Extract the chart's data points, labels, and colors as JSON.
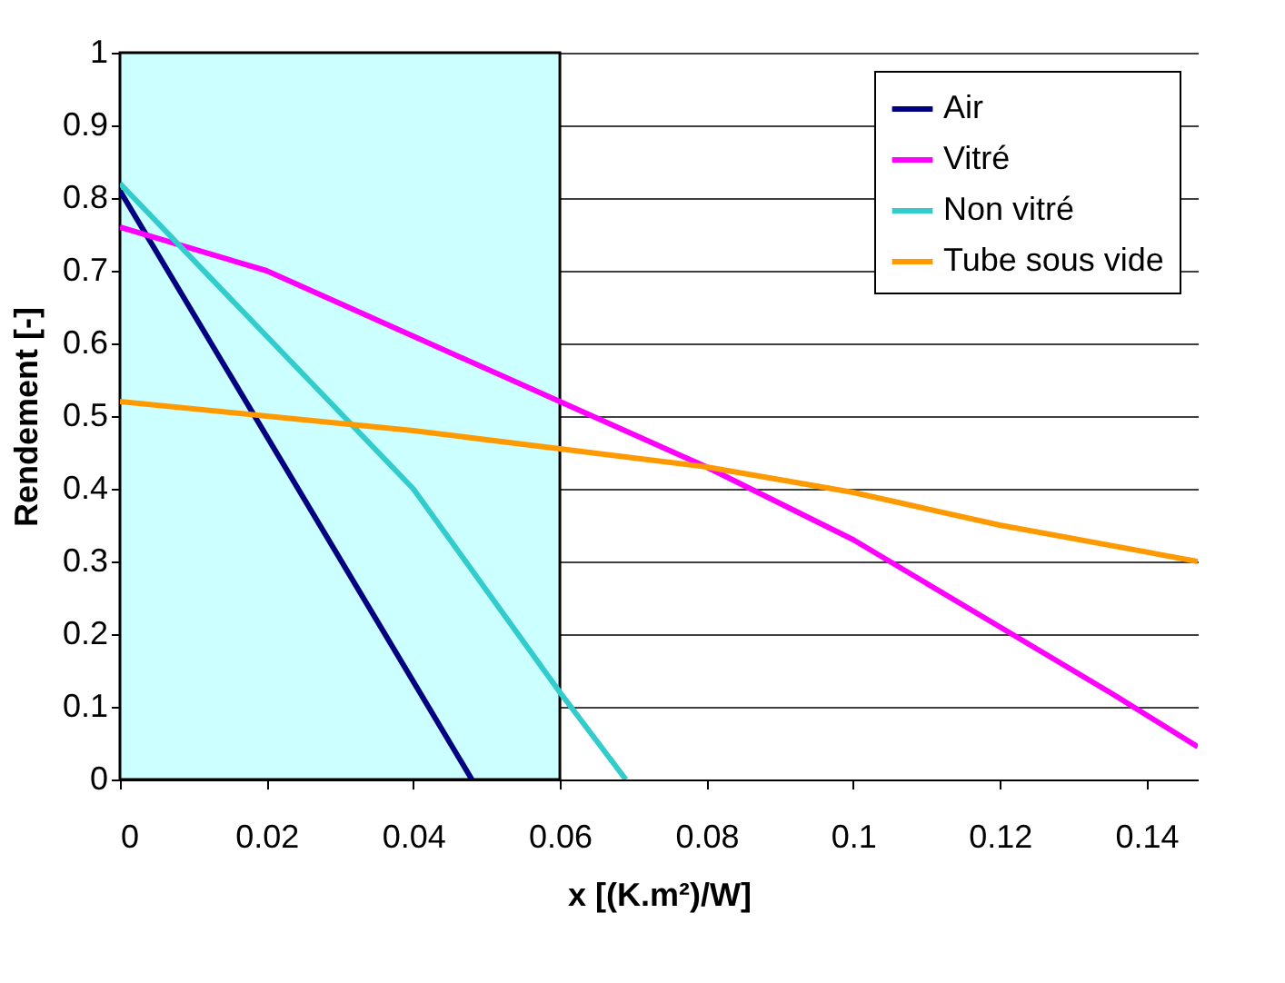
{
  "chart_data": {
    "type": "line",
    "xlabel": "x [(K.m²)/W]",
    "ylabel": "Rendement [-]",
    "xlim": [
      0,
      0.147
    ],
    "xticks": [
      0,
      0.02,
      0.04,
      0.06,
      0.08,
      0.1,
      0.12,
      0.14
    ],
    "ylim": [
      0,
      1
    ],
    "yticks": [
      0,
      0.1,
      0.2,
      0.3,
      0.4,
      0.5,
      0.6,
      0.7,
      0.8,
      0.9,
      1
    ],
    "grid": "y",
    "legend": "top right",
    "marker": "none",
    "line_style": "solid",
    "bands": [
      {
        "axis": "x",
        "from": 0,
        "to": 0.06,
        "color": "#ccffff"
      }
    ],
    "series": [
      {
        "name": "Air",
        "color": "#000080",
        "x": [
          0,
          0.048
        ],
        "values": [
          0.81,
          0
        ]
      },
      {
        "name": "Vitré",
        "color": "#ff00ff",
        "x": [
          0,
          0.02,
          0.04,
          0.06,
          0.08,
          0.1,
          0.12,
          0.135,
          0.147
        ],
        "values": [
          0.76,
          0.7,
          0.61,
          0.52,
          0.43,
          0.33,
          0.21,
          0.12,
          0.045
        ]
      },
      {
        "name": "Non vitré",
        "color": "#33cccc",
        "x": [
          0,
          0.02,
          0.04,
          0.06,
          0.069
        ],
        "values": [
          0.82,
          0.61,
          0.4,
          0.12,
          0
        ]
      },
      {
        "name": "Tube sous vide",
        "color": "#ff9900",
        "x": [
          0,
          0.02,
          0.04,
          0.06,
          0.08,
          0.1,
          0.12,
          0.147
        ],
        "values": [
          0.52,
          0.5,
          0.48,
          0.455,
          0.43,
          0.395,
          0.35,
          0.3
        ]
      }
    ]
  }
}
